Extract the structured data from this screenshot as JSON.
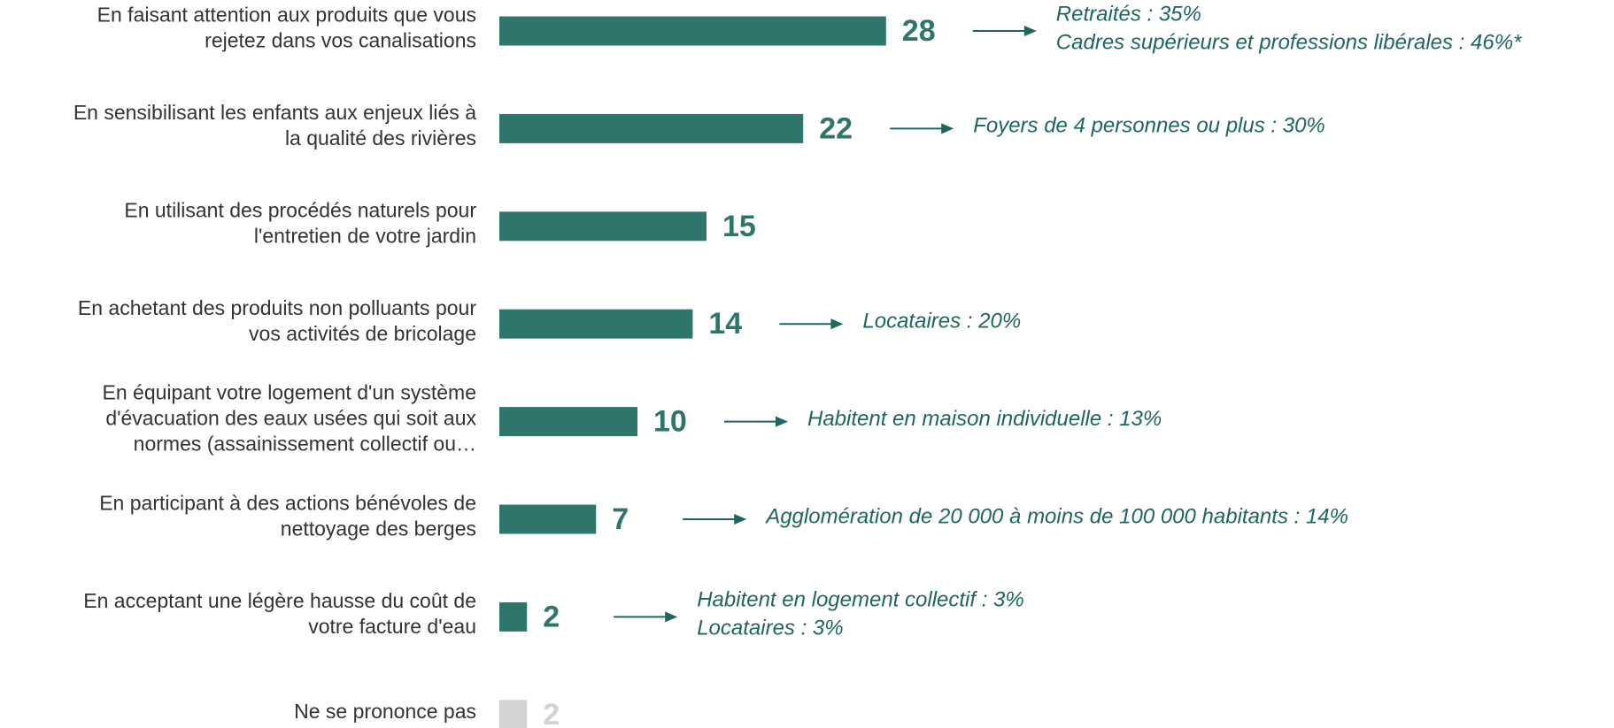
{
  "chart_data": {
    "type": "bar",
    "orientation": "horizontal",
    "categories": [
      [
        "En faisant attention aux produits que vous",
        "rejetez dans vos canalisations"
      ],
      [
        "En sensibilisant les enfants aux enjeux liés à",
        "la qualité des rivières"
      ],
      [
        "En utilisant des procédés naturels pour",
        "l'entretien de votre jardin"
      ],
      [
        "En achetant des produits non polluants pour",
        "vos activités de bricolage"
      ],
      [
        "En équipant votre logement d'un système",
        "d'évacuation des eaux usées qui soit aux",
        "normes (assainissement collectif ou…"
      ],
      [
        "En participant à des actions bénévoles de",
        "nettoyage des berges"
      ],
      [
        "En acceptant une légère hausse du coût de",
        "votre facture d'eau"
      ],
      [
        "Ne se prononce pas"
      ]
    ],
    "values": [
      28,
      22,
      15,
      14,
      10,
      7,
      2,
      2
    ],
    "colors": [
      "#2e766c",
      "#2e766c",
      "#2e766c",
      "#2e766c",
      "#2e766c",
      "#2e766c",
      "#2e766c",
      "#d3d3d3"
    ],
    "annotations": [
      [
        "Retraités : 35%",
        "Cadres supérieurs et professions libérales : 46%*"
      ],
      [
        "Foyers de 4 personnes ou plus :  30%"
      ],
      null,
      [
        "Locataires : 20%"
      ],
      [
        "Habitent en maison individuelle : 13%"
      ],
      [
        "Agglomération de 20 000 à moins de 100 000 habitants : 14%"
      ],
      [
        "Habitent en logement collectif : 3%",
        "Locataires : 3%"
      ],
      null
    ]
  }
}
